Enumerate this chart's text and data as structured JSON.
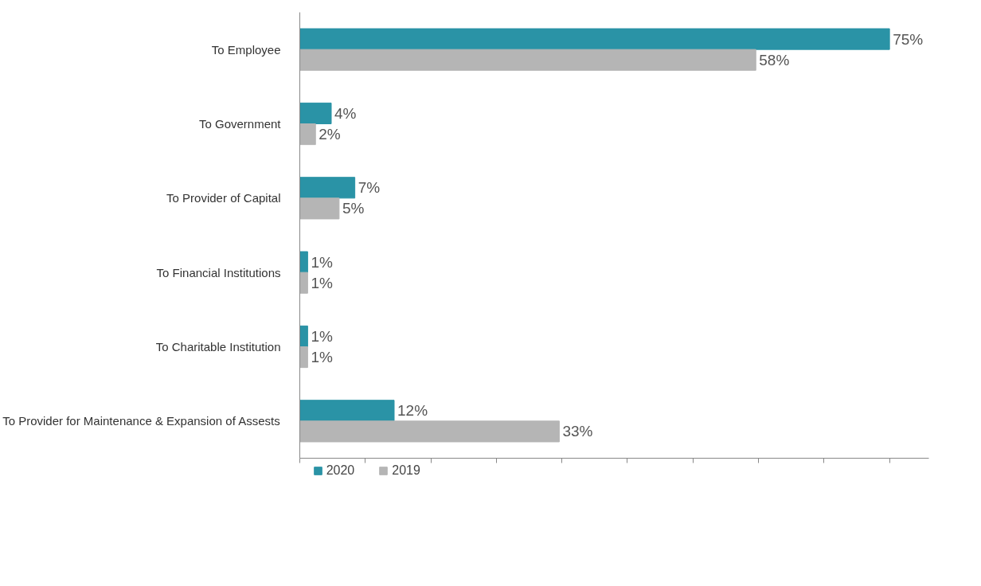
{
  "chart_data": {
    "type": "bar",
    "orientation": "horizontal",
    "categories": [
      "To Employee",
      "To Government",
      "To Provider of Capital",
      "To Financial Institutions",
      "To Charitable Institution",
      "To Provider for Maintenance & Expansion of Assests"
    ],
    "series": [
      {
        "name": "2020",
        "color": "#2a93a6",
        "values": [
          75,
          4,
          7,
          1,
          1,
          12
        ],
        "value_labels": [
          "75%",
          "4%",
          "7%",
          "1%",
          "1%",
          "12%"
        ]
      },
      {
        "name": "2019",
        "color": "#b5b5b5",
        "values": [
          58,
          2,
          5,
          1,
          1,
          33
        ],
        "value_labels": [
          "58%",
          "2%",
          "5%",
          "1%",
          "1%",
          "33%"
        ]
      }
    ],
    "xlim": [
      0,
      80
    ],
    "xticks": [
      {
        "value": 0,
        "label": null
      },
      {
        "value": 8.333,
        "label": null
      },
      {
        "value": 16.667,
        "label": null
      },
      {
        "value": 25,
        "label": null
      },
      {
        "value": 33.333,
        "label": null
      },
      {
        "value": 41.667,
        "label": null
      },
      {
        "value": 50,
        "label": null
      },
      {
        "value": 58.333,
        "label": null
      },
      {
        "value": 66.667,
        "label": null
      },
      {
        "value": 75,
        "label": null
      }
    ],
    "tick_labels": "y",
    "grid": false,
    "legend": "bottom left"
  }
}
